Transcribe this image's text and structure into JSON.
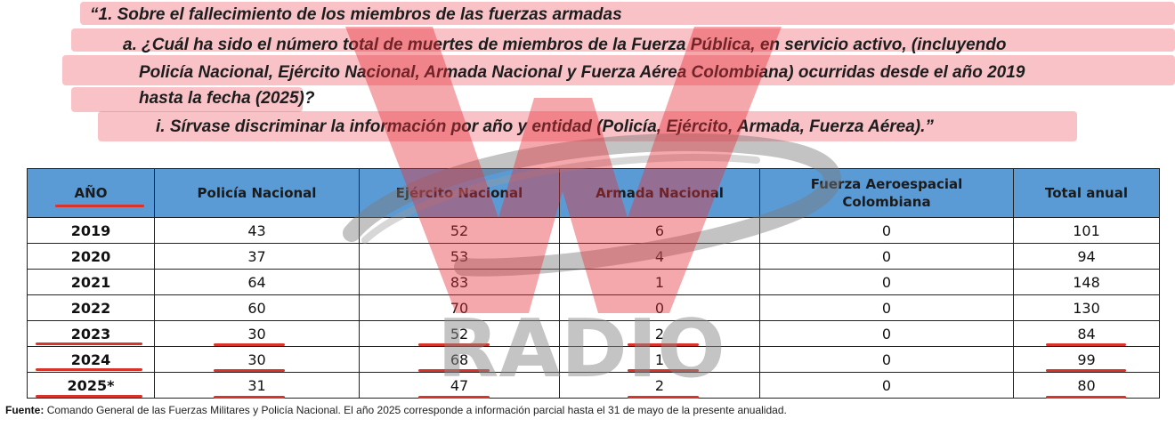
{
  "question": {
    "line1": "“1. Sobre el fallecimiento de los miembros de las fuerzas armadas",
    "line2": "a. ¿Cuál ha sido el número total de muertes de miembros de la Fuerza Pública, en servicio activo, (incluyendo",
    "line3": "Policía Nacional, Ejército Nacional, Armada Nacional y Fuerza Aérea Colombiana) ocurridas desde el año 2019",
    "line4": "hasta la fecha (2025)?",
    "line5": "i. Sírvase discriminar la información por año y entidad (Policía, Ejército, Armada, Fuerza Aérea).”"
  },
  "table": {
    "headers": [
      "AÑO",
      "Policía Nacional",
      "Ejército Nacional",
      "Armada Nacional",
      "Fuerza Aeroespacial Colombiana",
      "Total anual"
    ],
    "rows": [
      [
        "2019",
        "43",
        "52",
        "6",
        "0",
        "101"
      ],
      [
        "2020",
        "37",
        "53",
        "4",
        "0",
        "94"
      ],
      [
        "2021",
        "64",
        "83",
        "1",
        "0",
        "148"
      ],
      [
        "2022",
        "60",
        "70",
        "0",
        "0",
        "130"
      ],
      [
        "2023",
        "30",
        "52",
        "2",
        "0",
        "84"
      ],
      [
        "2024",
        "30",
        "68",
        "1",
        "0",
        "99"
      ],
      [
        "2025*",
        "31",
        "47",
        "2",
        "0",
        "80"
      ]
    ]
  },
  "source": {
    "label": "Fuente:",
    "text": "Comando General de las Fuerzas Militares y Policía Nacional. El año 2025 corresponde a información parcial hasta el 31 de mayo de la presente anualidad."
  },
  "watermark": {
    "text": "RADIO",
    "letter": "W"
  },
  "colors": {
    "header_bg": "#5b9bd5",
    "highlight": "#ef7882",
    "underline": "#d9342b"
  }
}
